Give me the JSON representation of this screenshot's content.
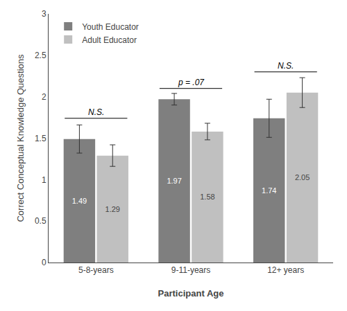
{
  "chart_data": {
    "type": "bar",
    "categories": [
      "5-8-years",
      "9-11-years",
      "12+ years"
    ],
    "series": [
      {
        "name": "Youth Educator",
        "color": "#7f7f7f",
        "values": [
          1.49,
          1.97,
          1.74
        ],
        "errors": [
          0.17,
          0.07,
          0.23
        ]
      },
      {
        "name": "Adult Educator",
        "color": "#c0c0c0",
        "values": [
          1.29,
          1.58,
          2.05
        ],
        "errors": [
          0.13,
          0.1,
          0.18
        ]
      }
    ],
    "ylim": [
      0,
      3.0
    ],
    "yticks": [
      0,
      0.5,
      1.0,
      1.5,
      2.0,
      2.5,
      3.0
    ],
    "ylabel": "Correct Conceptual Knowledge Questions",
    "xlabel": "Participant Age",
    "data_labels": true,
    "legend": "upper left",
    "grid": false,
    "annotations": [
      {
        "text": "N.S.",
        "category": "5-8-years",
        "y": 1.74
      },
      {
        "text": "p = .07",
        "category": "9-11-years",
        "y": 2.1
      },
      {
        "text": "N.S.",
        "category": "12+ years",
        "y": 2.3
      }
    ]
  }
}
